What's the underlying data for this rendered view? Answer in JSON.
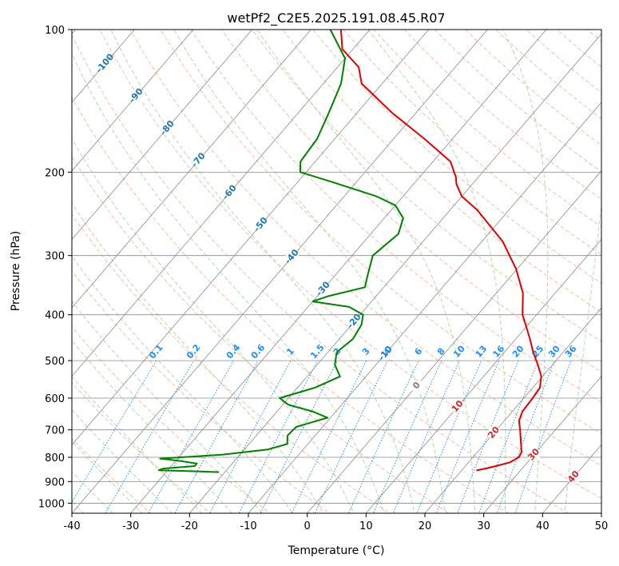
{
  "chart_data": {
    "type": "line",
    "subtype": "skew-t log-p",
    "title": "wetPf2_C2E5.2025.191.08.45.R07",
    "xlabel": "Temperature (°C)",
    "ylabel": "Pressure (hPa)",
    "xlim": [
      -40,
      50
    ],
    "ylim": [
      1050,
      100
    ],
    "y_scale": "log",
    "x_ticks": [
      "-40",
      "-30",
      "-20",
      "-10",
      "0",
      "10",
      "20",
      "30",
      "40",
      "50"
    ],
    "y_ticks": [
      "100",
      "200",
      "300",
      "400",
      "500",
      "600",
      "700",
      "800",
      "900",
      "1000"
    ],
    "y_tick_values": [
      100,
      200,
      300,
      400,
      500,
      600,
      700,
      800,
      900,
      1000
    ],
    "grid": true,
    "colors": {
      "temperature": "#e00000",
      "dewpoint": "#008000",
      "isotherm": "#8c8c8c",
      "dry_adiabat": "#f4a582",
      "moist_adiabat": "#8cc88c",
      "mixing_ratio": "#1e90ff",
      "isotherm_label": "#1f77b4",
      "dry_adiabat_label": "#d62728"
    },
    "isotherm_labels": [
      {
        "text": "-100",
        "t": -100
      },
      {
        "text": "-90",
        "t": -90
      },
      {
        "text": "-80",
        "t": -80
      },
      {
        "text": "-70",
        "t": -70
      },
      {
        "text": "-60",
        "t": -60
      },
      {
        "text": "-50",
        "t": -50
      },
      {
        "text": "-40",
        "t": -40
      },
      {
        "text": "-30",
        "t": -30
      },
      {
        "text": "-20",
        "t": -20
      },
      {
        "text": "-10",
        "t": -10
      },
      {
        "text": "0",
        "t": 0
      }
    ],
    "dry_adiabat_labels": [
      {
        "text": "10",
        "t": 10
      },
      {
        "text": "20",
        "t": 20
      },
      {
        "text": "30",
        "t": 30
      },
      {
        "text": "40",
        "t": 40
      }
    ],
    "mixing_ratio_labels": [
      "0.1",
      "0.2",
      "0.4",
      "0.6",
      "1",
      "1.5",
      "2",
      "3",
      "4",
      "6",
      "8",
      "10",
      "13",
      "16",
      "20",
      "25",
      "30",
      "36"
    ],
    "mixing_ratio_values": [
      0.1,
      0.2,
      0.4,
      0.6,
      1,
      1.5,
      2,
      3,
      4,
      6,
      8,
      10,
      13,
      16,
      20,
      25,
      30,
      36
    ],
    "series": [
      {
        "name": "",
        "role": "temperature",
        "points": [
          [
            853,
            22.5
          ],
          [
            840,
            24.5
          ],
          [
            820,
            27.0
          ],
          [
            800,
            27.8
          ],
          [
            780,
            27.5
          ],
          [
            740,
            25.8
          ],
          [
            700,
            24.0
          ],
          [
            670,
            22.5
          ],
          [
            640,
            21.7
          ],
          [
            600,
            21.5
          ],
          [
            570,
            21.2
          ],
          [
            540,
            19.8
          ],
          [
            510,
            17.5
          ],
          [
            480,
            14.9
          ],
          [
            450,
            12.4
          ],
          [
            420,
            9.6
          ],
          [
            400,
            7.6
          ],
          [
            360,
            4.5
          ],
          [
            320,
            -0.2
          ],
          [
            280,
            -6.5
          ],
          [
            240,
            -15.5
          ],
          [
            225,
            -20.0
          ],
          [
            212,
            -22.7
          ],
          [
            205,
            -23.8
          ],
          [
            190,
            -27.0
          ],
          [
            170,
            -34.8
          ],
          [
            150,
            -44.0
          ],
          [
            130,
            -53.5
          ],
          [
            120,
            -56.4
          ],
          [
            110,
            -61.8
          ],
          [
            100,
            -64.9
          ]
        ]
      },
      {
        "name": "",
        "role": "dewpoint",
        "points": [
          [
            860,
            -21.0
          ],
          [
            855,
            -27.0
          ],
          [
            852,
            -31.5
          ],
          [
            845,
            -31.0
          ],
          [
            835,
            -26.0
          ],
          [
            825,
            -26.0
          ],
          [
            815,
            -29.0
          ],
          [
            805,
            -33.0
          ],
          [
            790,
            -23.0
          ],
          [
            770,
            -16.0
          ],
          [
            750,
            -13.5
          ],
          [
            720,
            -14.7
          ],
          [
            690,
            -14.5
          ],
          [
            660,
            -10.5
          ],
          [
            640,
            -14.0
          ],
          [
            620,
            -19.0
          ],
          [
            600,
            -21.5
          ],
          [
            570,
            -17.0
          ],
          [
            540,
            -14.4
          ],
          [
            510,
            -17.0
          ],
          [
            480,
            -18.5
          ],
          [
            450,
            -17.7
          ],
          [
            420,
            -18.3
          ],
          [
            400,
            -19.5
          ],
          [
            385,
            -23.0
          ],
          [
            375,
            -30.0
          ],
          [
            365,
            -28.0
          ],
          [
            350,
            -23.2
          ],
          [
            330,
            -24.5
          ],
          [
            300,
            -26.5
          ],
          [
            270,
            -25.3
          ],
          [
            250,
            -26.8
          ],
          [
            235,
            -30.0
          ],
          [
            225,
            -34.5
          ],
          [
            210,
            -44.0
          ],
          [
            200,
            -51.0
          ],
          [
            190,
            -52.5
          ],
          [
            170,
            -53.0
          ],
          [
            150,
            -54.8
          ],
          [
            130,
            -57.0
          ],
          [
            115,
            -60.0
          ],
          [
            100,
            -66.7
          ]
        ]
      }
    ]
  }
}
